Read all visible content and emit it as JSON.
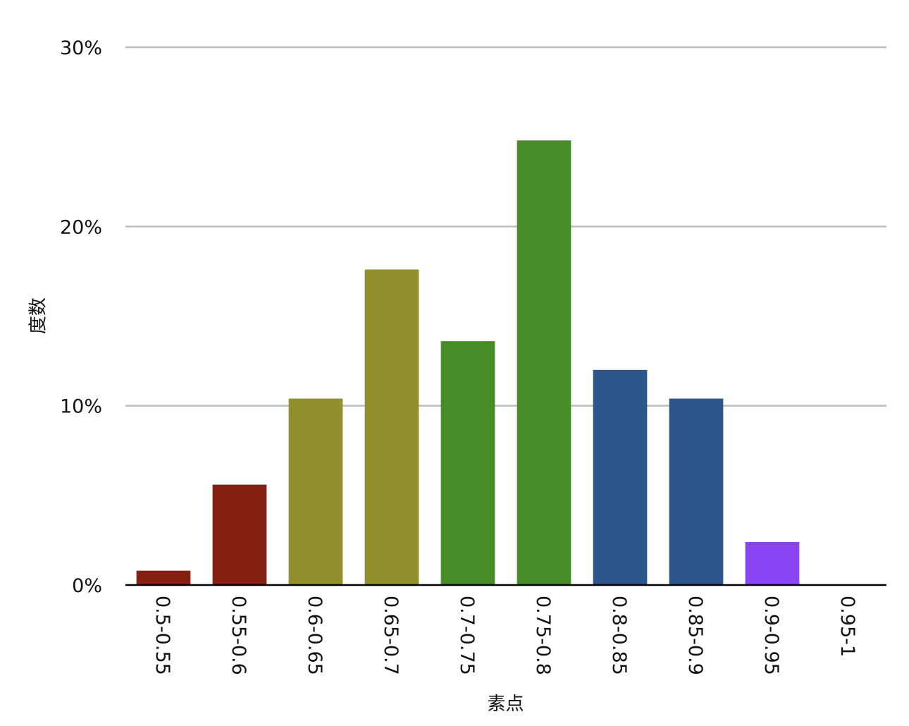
{
  "chart_data": {
    "type": "bar",
    "title": "",
    "xlabel": "素点",
    "ylabel": "度数",
    "categories": [
      "0.5-0.55",
      "0.55-0.6",
      "0.6-0.65",
      "0.65-0.7",
      "0.7-0.75",
      "0.75-0.8",
      "0.8-0.85",
      "0.85-0.9",
      "0.9-0.95",
      "0.95-1"
    ],
    "values": [
      0.8,
      5.6,
      10.4,
      17.6,
      13.6,
      24.8,
      12.0,
      10.4,
      2.4,
      0
    ],
    "colors": [
      "#852112",
      "#852112",
      "#918f2e",
      "#918f2e",
      "#488c28",
      "#488c28",
      "#2c558c",
      "#2c558c",
      "#8a44f4",
      "#8a44f4"
    ],
    "ylim": [
      0,
      30
    ],
    "yticks": [
      0,
      10,
      20,
      30
    ],
    "ytick_labels": [
      "0%",
      "10%",
      "20%",
      "30%"
    ],
    "grid": true,
    "legend": "none"
  }
}
